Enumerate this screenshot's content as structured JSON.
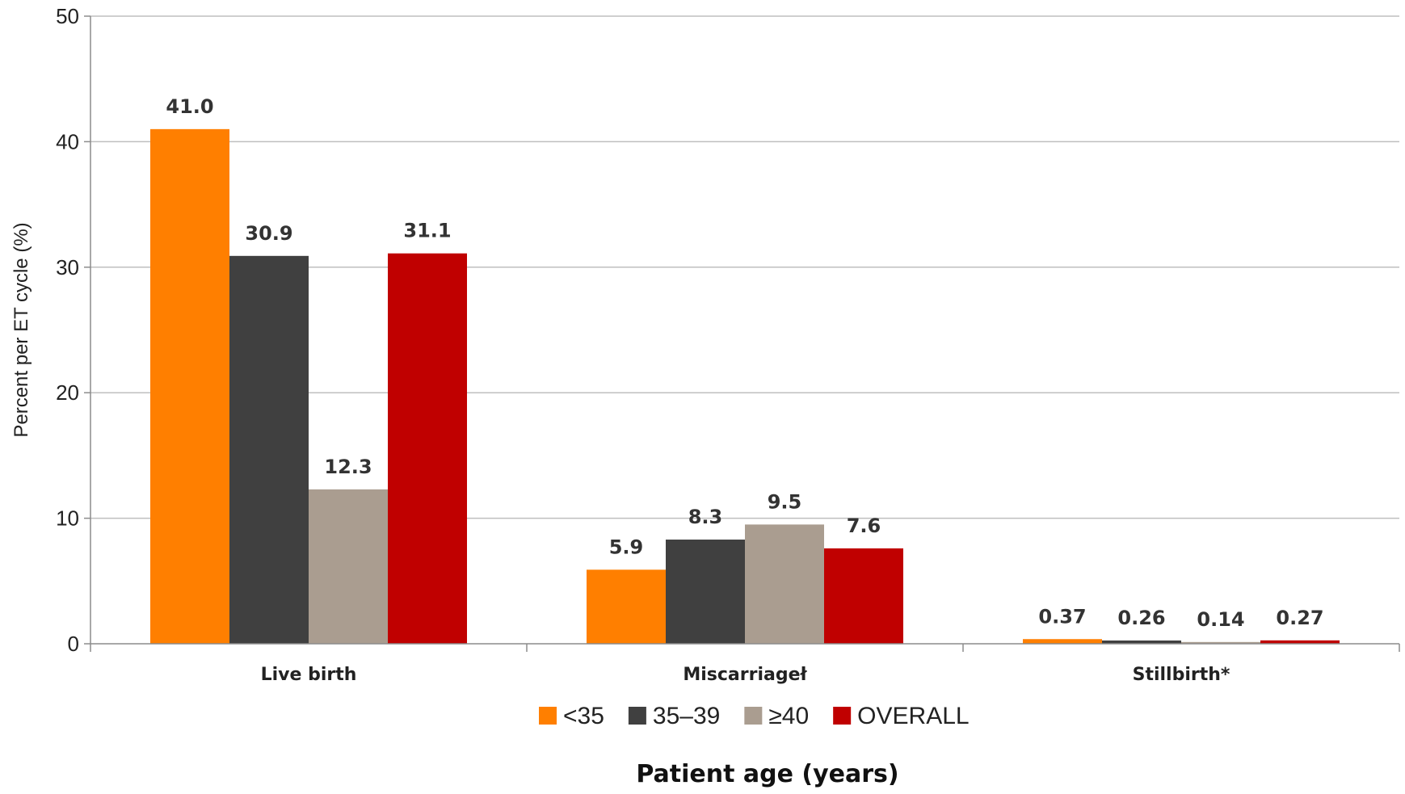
{
  "chart_data": {
    "type": "bar",
    "categories": [
      "Live birth",
      "Miscarriageł",
      "Stillbirth*"
    ],
    "series": [
      {
        "name": "<35",
        "color": "#FF7F00",
        "values": [
          41.0,
          5.9,
          0.37
        ],
        "labels": [
          "41.0",
          "5.9",
          "0.37"
        ]
      },
      {
        "name": "35–39",
        "color": "#404040",
        "values": [
          30.9,
          8.3,
          0.26
        ],
        "labels": [
          "30.9",
          "8.3",
          "0.26"
        ]
      },
      {
        "name": "≥40",
        "color": "#AA9D90",
        "values": [
          12.3,
          9.5,
          0.14
        ],
        "labels": [
          "12.3",
          "9.5",
          "0.14"
        ]
      },
      {
        "name": "OVERALL",
        "color": "#C00000",
        "values": [
          31.1,
          7.6,
          0.27
        ],
        "labels": [
          "31.1",
          "7.6",
          "0.27"
        ]
      }
    ],
    "ylabel": "Percent per ET cycle (%)",
    "xlabel": "Patient age (years)",
    "ylim": [
      0,
      50
    ],
    "yticks": [
      0,
      10,
      20,
      30,
      40,
      50
    ],
    "grid": true,
    "legend_position": "bottom"
  }
}
